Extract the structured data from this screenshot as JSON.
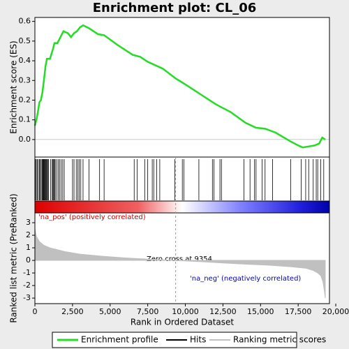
{
  "chart_data": [
    {
      "type": "line",
      "title": "Enrichment plot: CL_06",
      "y_label": "Enrichment score (ES)",
      "series": [
        {
          "name": "Enrichment profile",
          "color": "#22dd22",
          "x": [
            0,
            100,
            200,
            300,
            400,
            500,
            600,
            700,
            800,
            1000,
            1200,
            1300,
            1500,
            1700,
            1900,
            2200,
            2400,
            2600,
            2800,
            3000,
            3200,
            3600,
            4200,
            4600,
            5500,
            6500,
            7000,
            7500,
            8500,
            9354,
            10000,
            11000,
            12000,
            12500,
            13000,
            14000,
            14700,
            15300,
            16000,
            17000,
            17500,
            17800,
            18200,
            18600,
            18900,
            19100,
            19300
          ],
          "values": [
            0.07,
            0.1,
            0.14,
            0.19,
            0.2,
            0.24,
            0.3,
            0.37,
            0.41,
            0.41,
            0.46,
            0.49,
            0.49,
            0.52,
            0.55,
            0.54,
            0.52,
            0.54,
            0.55,
            0.57,
            0.58,
            0.565,
            0.535,
            0.53,
            0.48,
            0.43,
            0.42,
            0.395,
            0.36,
            0.31,
            0.28,
            0.23,
            0.18,
            0.16,
            0.14,
            0.085,
            0.06,
            0.055,
            0.035,
            -0.01,
            -0.03,
            -0.04,
            -0.035,
            -0.03,
            -0.02,
            0.01,
            0.0
          ]
        }
      ],
      "hits_name": "Hits",
      "hits_color": "#000000",
      "hits": [
        30,
        90,
        150,
        220,
        300,
        350,
        420,
        480,
        520,
        560,
        600,
        640,
        680,
        720,
        760,
        800,
        850,
        900,
        1050,
        1150,
        1200,
        1250,
        1300,
        1350,
        1450,
        1550,
        1650,
        1750,
        1850,
        1950,
        2500,
        2600,
        2750,
        2850,
        2950,
        3050,
        3200,
        3600,
        4300,
        4600,
        6600,
        6800,
        7300,
        7500,
        7800,
        7900,
        8100,
        8300,
        9300,
        9800,
        9900,
        10900,
        11800,
        11900,
        12300,
        12400,
        13900,
        14300,
        14600,
        14700,
        15100,
        15300,
        15800,
        17000,
        17700,
        18000,
        18200,
        18500,
        18700,
        18800,
        19000,
        19200
      ],
      "xlim": [
        0,
        19580
      ],
      "ylim": [
        -0.089,
        0.62
      ],
      "yticks": [
        {
          "value": 0,
          "label": "0.0"
        },
        0.1,
        0.2,
        0.3,
        0.4,
        0.5,
        0.6
      ],
      "pos_label": "'na_pos' (positively correlated)",
      "neg_label": "'na_neg' (negatively correlated)"
    },
    {
      "type": "area",
      "y_label": "Ranked list metric (PreRanked)",
      "x_label": "Rank in Ordered Dataset",
      "series": [
        {
          "name": "Ranking metric scores",
          "color": "#c0c0c0",
          "x": [
            0,
            100,
            300,
            600,
            1000,
            2000,
            3000,
            4500,
            6000,
            7500,
            9354,
            11000,
            12500,
            14000,
            15500,
            17000,
            18000,
            18500,
            18800,
            19000,
            19150,
            19250,
            19300
          ],
          "values": [
            2.5,
            1.9,
            1.5,
            1.2,
            1.0,
            0.7,
            0.5,
            0.33,
            0.2,
            0.1,
            0,
            -0.1,
            -0.2,
            -0.3,
            -0.38,
            -0.5,
            -0.62,
            -0.8,
            -1.0,
            -1.2,
            -1.7,
            -2.5,
            -3.0
          ]
        }
      ],
      "annotation": "Zero cross at 9354",
      "zero_cross": 9354,
      "xlim": [
        0,
        19580
      ],
      "ylim": [
        -3.44,
        3.78
      ],
      "xticks": [
        0,
        {
          "value": 2500,
          "label": "2,500"
        },
        {
          "value": 5000,
          "label": "5,000"
        },
        {
          "value": 7500,
          "label": "7,500"
        },
        {
          "value": 10000,
          "label": "10,000"
        },
        {
          "value": 12500,
          "label": "12,500"
        },
        {
          "value": 15000,
          "label": "15,000"
        },
        {
          "value": 17500,
          "label": "17,500"
        },
        {
          "value": 20000,
          "label": "20,000"
        }
      ],
      "yticks": [
        -3,
        -2,
        -1,
        0,
        1,
        2,
        3
      ]
    }
  ]
}
